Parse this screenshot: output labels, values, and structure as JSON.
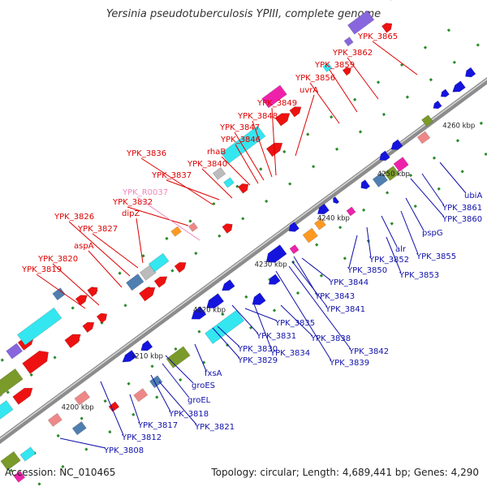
{
  "title": "Yersinia pseudotuberculosis YPIII, complete genome",
  "footer": {
    "accession": "Accession: NC_010465",
    "summary": "Topology: circular; Length: 4,689,441 bp; Genes: 4,290"
  },
  "colors": {
    "upper_label": "#dd0000",
    "lower_label": "#1010aa",
    "rna_label": "#ee88bb",
    "backbone": "#8c8c8c",
    "tick": "#2a8a2a",
    "red_feature": "#ee1111",
    "blue_feature": "#1414dd",
    "cyan_feature": "#33e6f0",
    "olive_feature": "#7a9a2a",
    "purple_feature": "#8866dd",
    "steel_feature": "#4f7fb0",
    "magenta_feature": "#ee22aa",
    "gray_feature": "#bbbbbb",
    "orange_feature": "#ff9922",
    "salmon_feature": "#ee8888"
  },
  "ruler": [
    {
      "text": "4200 kbp"
    },
    {
      "text": "4210 kbp"
    },
    {
      "text": "4220 kbp"
    },
    {
      "text": "4230 kbp"
    },
    {
      "text": "4240 kbp"
    },
    {
      "text": "4250 kbp"
    },
    {
      "text": "4260 kbp"
    }
  ],
  "upper_labels": [
    {
      "text": "YPK_3819",
      "kind": "gene"
    },
    {
      "text": "YPK_3820",
      "kind": "gene"
    },
    {
      "text": "aspA",
      "kind": "gene"
    },
    {
      "text": "YPK_3826",
      "kind": "gene"
    },
    {
      "text": "YPK_3827",
      "kind": "gene"
    },
    {
      "text": "dipZ",
      "kind": "gene"
    },
    {
      "text": "YPK_3832",
      "kind": "gene"
    },
    {
      "text": "YPK_R0037",
      "kind": "rna"
    },
    {
      "text": "YPK_3836",
      "kind": "gene"
    },
    {
      "text": "YPK_3837",
      "kind": "gene"
    },
    {
      "text": "YPK_3840",
      "kind": "gene"
    },
    {
      "text": "rhaB",
      "kind": "gene"
    },
    {
      "text": "YPK_3846",
      "kind": "gene"
    },
    {
      "text": "YPK_3847",
      "kind": "gene"
    },
    {
      "text": "YPK_3848",
      "kind": "gene"
    },
    {
      "text": "YPK_3849",
      "kind": "gene"
    },
    {
      "text": "uvrA",
      "kind": "gene"
    },
    {
      "text": "YPK_3856",
      "kind": "gene"
    },
    {
      "text": "YPK_3859",
      "kind": "gene"
    },
    {
      "text": "YPK_3862",
      "kind": "gene"
    },
    {
      "text": "YPK_3865",
      "kind": "gene"
    }
  ],
  "lower_labels": [
    {
      "text": "YPK_3808"
    },
    {
      "text": "YPK_3812"
    },
    {
      "text": "YPK_3817"
    },
    {
      "text": "YPK_3818"
    },
    {
      "text": "YPK_3821"
    },
    {
      "text": "groEL"
    },
    {
      "text": "groES"
    },
    {
      "text": "fxsA"
    },
    {
      "text": "YPK_3829"
    },
    {
      "text": "YPK_3830"
    },
    {
      "text": "YPK_3831"
    },
    {
      "text": "YPK_3834"
    },
    {
      "text": "YPK_3835"
    },
    {
      "text": "YPK_3838"
    },
    {
      "text": "YPK_3839"
    },
    {
      "text": "YPK_3842"
    },
    {
      "text": "YPK_3841"
    },
    {
      "text": "YPK_3843"
    },
    {
      "text": "YPK_3844"
    },
    {
      "text": "YPK_3850"
    },
    {
      "text": "YPK_3852"
    },
    {
      "text": "alr"
    },
    {
      "text": "YPK_3853"
    },
    {
      "text": "YPK_3855"
    },
    {
      "text": "pspG"
    },
    {
      "text": "YPK_3860"
    },
    {
      "text": "YPK_3861"
    },
    {
      "text": "ubiA"
    }
  ]
}
